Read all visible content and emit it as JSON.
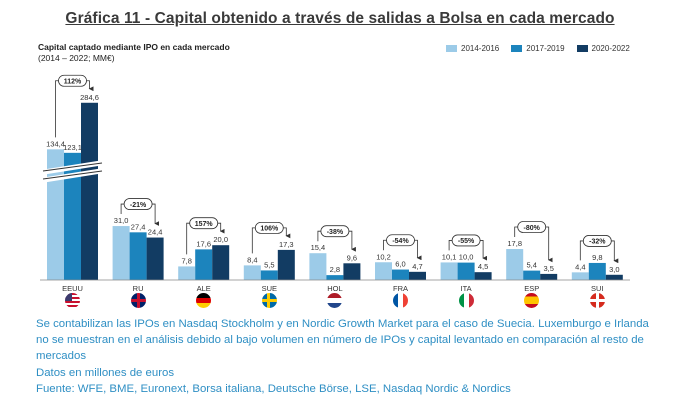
{
  "title": "Gráfica 11 - Capital obtenido a través de salidas a Bolsa en cada mercado",
  "subtitle_line1": "Capital captado mediante IPO en cada mercado",
  "subtitle_line2": "(2014 – 2022; MM€)",
  "colors": {
    "s1": "#9ccbe8",
    "s2": "#1c84bd",
    "s3": "#123c63",
    "text_blue": "#2f8fc4"
  },
  "chart_data": {
    "type": "bar",
    "categories": [
      "EEUU",
      "RU",
      "ALE",
      "SUE",
      "HOL",
      "FRA",
      "ITA",
      "ESP",
      "SUI"
    ],
    "series": [
      {
        "name": "2014-2016",
        "values": [
          134.4,
          31.0,
          7.8,
          8.4,
          15.4,
          10.2,
          10.1,
          17.8,
          4.4
        ]
      },
      {
        "name": "2017-2019",
        "values": [
          123.1,
          27.4,
          17.6,
          5.5,
          2.8,
          6.0,
          10.0,
          5.4,
          9.8
        ]
      },
      {
        "name": "2020-2022",
        "values": [
          284.6,
          24.4,
          20.0,
          17.3,
          9.6,
          4.7,
          4.5,
          3.5,
          3.0
        ]
      }
    ],
    "value_labels": [
      [
        "134,4",
        "123,1",
        "284,6"
      ],
      [
        "31,0",
        "27,4",
        "24,4"
      ],
      [
        "7,8",
        "17,6",
        "20,0"
      ],
      [
        "8,4",
        "5,5",
        "17,3"
      ],
      [
        "15,4",
        "2,8",
        "9,6"
      ],
      [
        "10,2",
        "6,0",
        "4,7"
      ],
      [
        "10,1",
        "10,0",
        "4,5"
      ],
      [
        "17,8",
        "5,4",
        "3,5"
      ],
      [
        "4,4",
        "9,8",
        "3,0"
      ]
    ],
    "change_labels": [
      "112%",
      "-21%",
      "157%",
      "106%",
      "-38%",
      "-54%",
      "-55%",
      "-80%",
      "-32%"
    ],
    "axis_break": true,
    "legend_position": "top-right",
    "grid": false
  },
  "flags": [
    "us-flag",
    "uk-flag",
    "germany-flag",
    "sweden-flag",
    "netherlands-flag",
    "france-flag",
    "italy-flag",
    "spain-flag",
    "switzerland-flag"
  ],
  "notes": {
    "line1": "Se contabilizan las IPOs en Nasdaq Stockholm y en Nordic Growth Market para el caso de Suecia. Luxemburgo e Irlanda no se muestran en el análisis debido al bajo volumen en número de IPOs y capital levantado en comparación al resto de mercados",
    "line2": "Datos en millones de euros",
    "line3": "Fuente: WFE, BME, Euronext, Borsa italiana, Deutsche Börse, LSE, Nasdaq Nordic & Nordics"
  }
}
